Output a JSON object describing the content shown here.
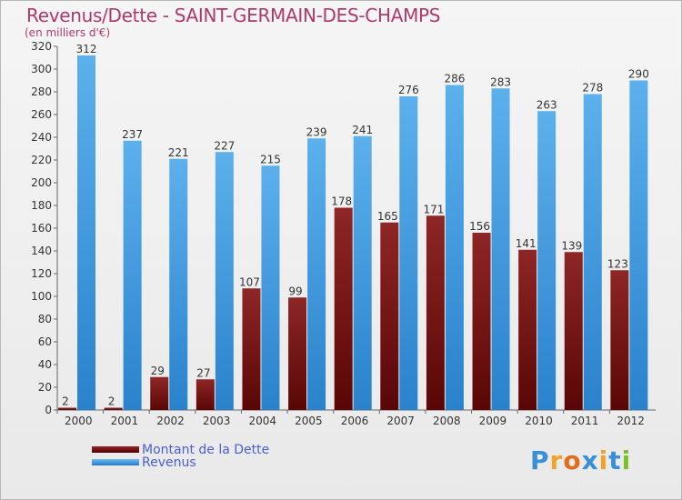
{
  "chart_data": {
    "type": "bar",
    "title": "Revenus/Dette - SAINT-GERMAIN-DES-CHAMPS",
    "subtitle": "(en milliers d'€)",
    "categories": [
      "2000",
      "2001",
      "2002",
      "2003",
      "2004",
      "2005",
      "2006",
      "2007",
      "2008",
      "2009",
      "2010",
      "2011",
      "2012"
    ],
    "series": [
      {
        "name": "Montant de la Dette",
        "color": "#7a1010",
        "values": [
          2,
          2,
          29,
          27,
          107,
          99,
          178,
          165,
          171,
          156,
          141,
          139,
          123
        ]
      },
      {
        "name": "Revenus",
        "color": "#3a9be0",
        "values": [
          312,
          237,
          221,
          227,
          215,
          239,
          241,
          276,
          286,
          283,
          263,
          278,
          290
        ]
      }
    ],
    "ylim": [
      0,
      320
    ],
    "yticks": [
      0,
      20,
      40,
      60,
      80,
      100,
      120,
      140,
      160,
      180,
      200,
      220,
      240,
      260,
      280,
      300,
      320
    ],
    "grid": false,
    "legend_position": "bottom-left",
    "colors": {
      "title": "#b0386a",
      "legend_text": "#4a5fd6",
      "axis_text": "#333333"
    }
  },
  "logo": {
    "text": "Proxiti",
    "letters": [
      "P",
      "r",
      "o",
      "x",
      "i",
      "t",
      "i"
    ],
    "colors": [
      "#3b8fd6",
      "#f2a12a",
      "#e36b1c",
      "#3b8fd6",
      "#f2a12a",
      "#3b8fd6",
      "#7bbf2a"
    ]
  }
}
